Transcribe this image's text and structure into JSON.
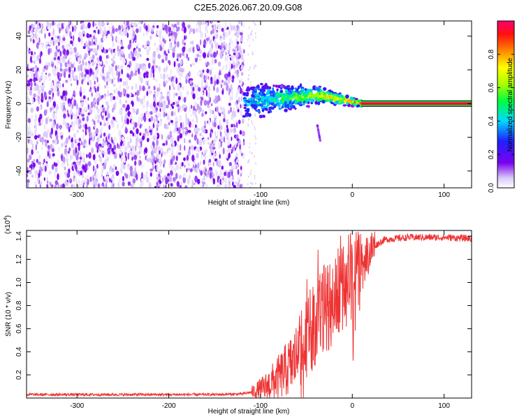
{
  "page_title": "C2E5.2026.067.20.09.G08",
  "chart_data": [
    {
      "type": "heatmap",
      "xlabel": "Height of straight line (km)",
      "ylabel": "Frequency (Hz)",
      "xlim": [
        -355,
        130
      ],
      "ylim": [
        -50,
        49
      ],
      "xticks": [
        -300,
        -200,
        -100,
        0,
        100
      ],
      "xtick_labels": [
        "-300",
        "-200",
        "-100",
        "0",
        "100"
      ],
      "yticks": [
        40,
        20,
        0,
        -20,
        -40
      ],
      "ytick_labels": [
        "40",
        "20",
        "0",
        "-20",
        "-40"
      ],
      "regions": [
        {
          "name": "noise",
          "x_range": [
            -355,
            -118
          ],
          "y_range": [
            -50,
            49
          ],
          "amplitude": "0.0-0.15"
        },
        {
          "name": "signal-onset",
          "x_range": [
            -118,
            10
          ],
          "center_freq_start": 1,
          "center_freq_peak": 5,
          "center_freq_end": 0,
          "amplitude": "0.3-0.8"
        },
        {
          "name": "steady-carrier",
          "x_range": [
            10,
            130
          ],
          "freq": 0,
          "amplitude": "0.95"
        },
        {
          "name": "spur",
          "x": -35,
          "y_range": [
            -13,
            -22
          ]
        }
      ],
      "colorbar": {
        "label": "Normalized spectral amplitude",
        "range": [
          0.0,
          1.0
        ],
        "ticks": [
          0.0,
          0.2,
          0.4,
          0.6,
          0.8
        ],
        "tick_labels": [
          "0.0",
          "0.2",
          "0.4",
          "0.6",
          "0.8"
        ]
      }
    },
    {
      "type": "line",
      "xlabel": "Height of straight line (km)",
      "ylabel": "SNR (10 * v/v)",
      "y_multiplier": "(x10",
      "y_exponent": "4",
      "y_multiplier_close": ")",
      "xlim": [
        -355,
        130
      ],
      "ylim": [
        0,
        1.45
      ],
      "xticks": [
        -300,
        -200,
        -100,
        0,
        100
      ],
      "xtick_labels": [
        "-300",
        "-200",
        "-100",
        "0",
        "100"
      ],
      "yticks": [
        0.2,
        0.4,
        0.6,
        0.8,
        1.0,
        1.2,
        1.4
      ],
      "ytick_labels": [
        "0.2",
        "0.4",
        "0.6",
        "0.8",
        "1.0",
        "1.2",
        "1.4"
      ],
      "series": [
        {
          "name": "SNR",
          "color": "#ee3333",
          "x": [
            -355,
            -300,
            -250,
            -200,
            -150,
            -120,
            -105,
            -95,
            -80,
            -65,
            -55,
            -45,
            -35,
            -25,
            -15,
            -5,
            5,
            15,
            25,
            35,
            60,
            100,
            130
          ],
          "y": [
            0.03,
            0.03,
            0.03,
            0.03,
            0.03,
            0.035,
            0.06,
            0.09,
            0.18,
            0.3,
            0.45,
            0.6,
            0.72,
            0.82,
            0.92,
            1.02,
            1.1,
            1.22,
            1.32,
            1.37,
            1.39,
            1.39,
            1.38
          ]
        }
      ]
    }
  ]
}
